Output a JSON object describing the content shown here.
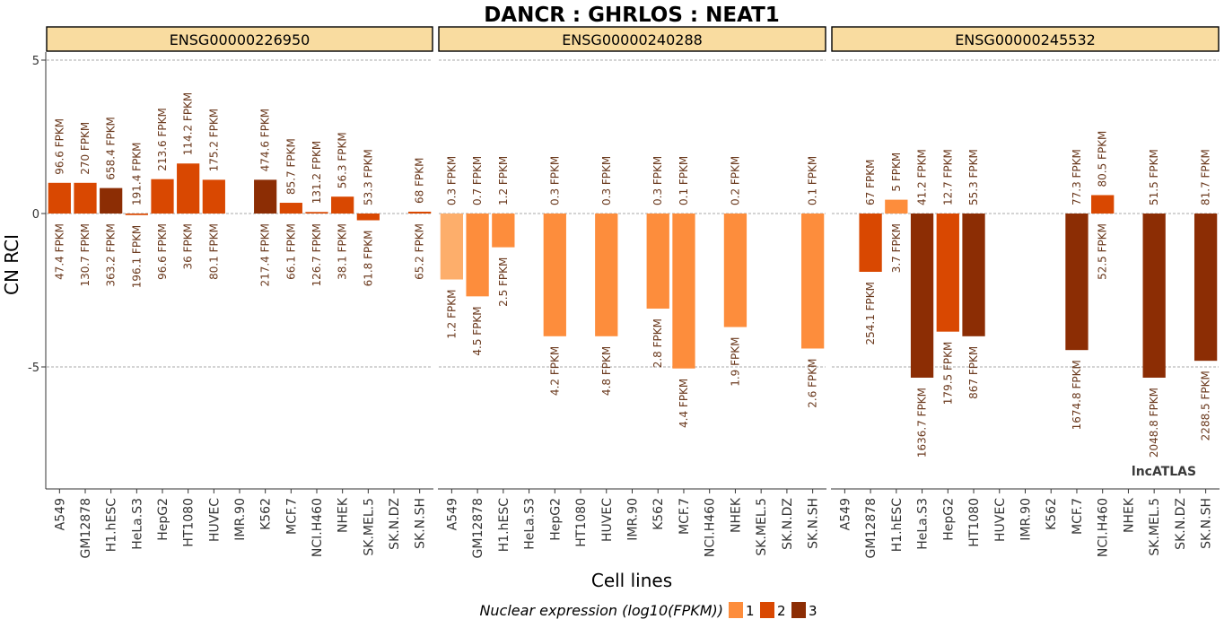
{
  "chart_data": {
    "type": "bar",
    "title": "DANCR : GHRLOS : NEAT1",
    "xlabel": "Cell lines",
    "ylabel": "CN RCI",
    "ylim": [
      -9,
      5.5
    ],
    "yticks": [
      5,
      0,
      -5
    ],
    "grid": "dashed at y ticks",
    "watermark": "lncATLAS",
    "categories": [
      "A549",
      "GM12878",
      "H1.hESC",
      "HeLa.S3",
      "HepG2",
      "HT1080",
      "HUVEC",
      "IMR.90",
      "K562",
      "MCF.7",
      "NCI.H460",
      "NHEK",
      "SK.MEL.5",
      "SK.N.DZ",
      "SK.N.SH"
    ],
    "legend": {
      "title": "Nuclear expression (log10(FPKM))",
      "position": "bottom",
      "items": [
        {
          "label": "1",
          "color": "#fd8d3c"
        },
        {
          "label": "2",
          "color": "#d94801"
        },
        {
          "label": "3",
          "color": "#8c2d04"
        }
      ]
    },
    "label_color": "#6b3a1e",
    "panels": [
      {
        "name": "ENSG00000226950",
        "values": [
          1.0,
          1.0,
          0.83,
          -0.05,
          1.12,
          1.63,
          1.1,
          null,
          1.1,
          0.35,
          0.05,
          0.55,
          -0.22,
          null,
          0.06
        ],
        "colors": [
          "#d94801",
          "#d94801",
          "#8c2d04",
          "#d94801",
          "#d94801",
          "#d94801",
          "#d94801",
          null,
          "#8c2d04",
          "#d94801",
          "#d94801",
          "#d94801",
          "#d94801",
          null,
          "#d94801"
        ],
        "cyto_labels": [
          "96.6 FPKM",
          "270 FPKM",
          "658.4 FPKM",
          "191.4 FPKM",
          "213.6 FPKM",
          "114.2 FPKM",
          "175.2 FPKM",
          null,
          "474.6 FPKM",
          "85.7 FPKM",
          "131.2 FPKM",
          "56.3 FPKM",
          "53.3 FPKM",
          null,
          "68 FPKM"
        ],
        "nuc_labels": [
          "47.4 FPKM",
          "130.7 FPKM",
          "363.2 FPKM",
          "196.1 FPKM",
          "96.6 FPKM",
          "36 FPKM",
          "80.1 FPKM",
          null,
          "217.4 FPKM",
          "66.1 FPKM",
          "126.7 FPKM",
          "38.1 FPKM",
          "61.8 FPKM",
          null,
          "65.2 FPKM"
        ]
      },
      {
        "name": "ENSG00000240288",
        "values": [
          -2.15,
          -2.7,
          -1.1,
          null,
          -4.0,
          null,
          -4.0,
          null,
          -3.1,
          -5.05,
          null,
          -3.7,
          null,
          null,
          -4.4
        ],
        "colors": [
          "#fdae6b",
          "#fd8d3c",
          "#fd8d3c",
          null,
          "#fd8d3c",
          null,
          "#fd8d3c",
          null,
          "#fd8d3c",
          "#fd8d3c",
          null,
          "#fd8d3c",
          null,
          null,
          "#fd8d3c"
        ],
        "cyto_labels": [
          "0.3 FPKM",
          "0.7 FPKM",
          "1.2 FPKM",
          null,
          "0.3 FPKM",
          null,
          "0.3 FPKM",
          null,
          "0.3 FPKM",
          "0.1 FPKM",
          null,
          "0.2 FPKM",
          null,
          null,
          "0.1 FPKM"
        ],
        "nuc_labels": [
          "1.2 FPKM",
          "4.5 FPKM",
          "2.5 FPKM",
          null,
          "4.2 FPKM",
          null,
          "4.8 FPKM",
          null,
          "2.8 FPKM",
          "4.4 FPKM",
          null,
          "1.9 FPKM",
          null,
          null,
          "2.6 FPKM"
        ]
      },
      {
        "name": "ENSG00000245532",
        "values": [
          null,
          -1.9,
          0.45,
          -5.35,
          -3.85,
          -4.0,
          null,
          null,
          null,
          -4.45,
          0.6,
          null,
          -5.35,
          null,
          -4.8
        ],
        "colors": [
          null,
          "#d94801",
          "#fd8d3c",
          "#8c2d04",
          "#d94801",
          "#8c2d04",
          null,
          null,
          null,
          "#8c2d04",
          "#d94801",
          null,
          "#8c2d04",
          null,
          "#8c2d04"
        ],
        "cyto_labels": [
          null,
          "67 FPKM",
          "5 FPKM",
          "41.2 FPKM",
          "12.7 FPKM",
          "55.3 FPKM",
          null,
          null,
          null,
          "77.3 FPKM",
          "80.5 FPKM",
          null,
          "51.5 FPKM",
          null,
          "81.7 FPKM"
        ],
        "nuc_labels": [
          null,
          "254.1 FPKM",
          "3.7 FPKM",
          "1636.7 FPKM",
          "179.5 FPKM",
          "867 FPKM",
          null,
          null,
          null,
          "1674.8 FPKM",
          "52.5 FPKM",
          null,
          "2048.8 FPKM",
          null,
          "2288.5 FPKM"
        ]
      }
    ]
  }
}
